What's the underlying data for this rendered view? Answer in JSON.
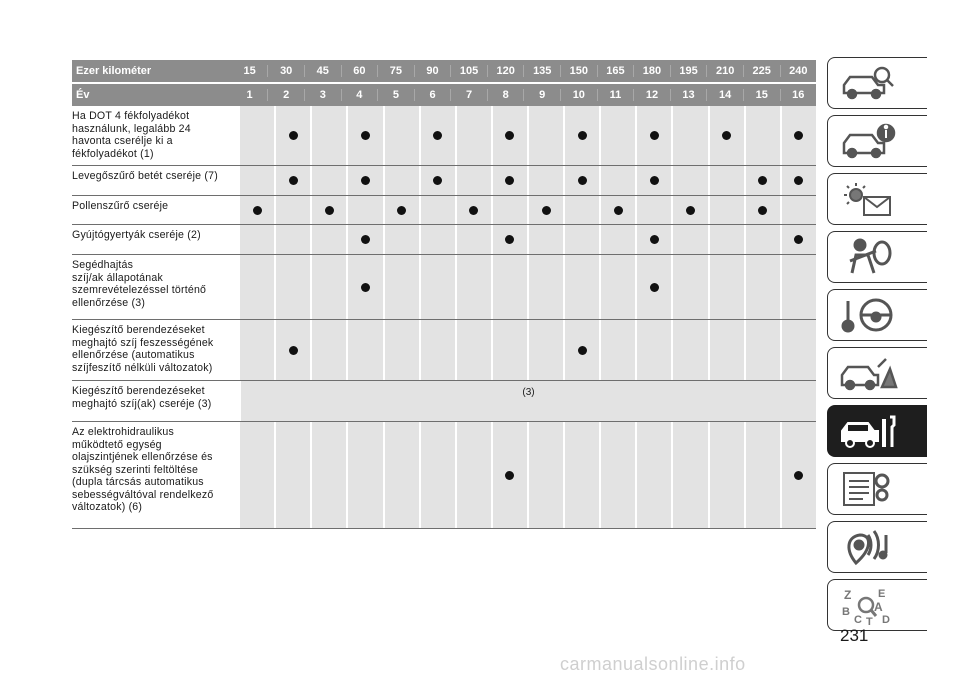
{
  "header": {
    "km_label": "Ezer kilométer",
    "km_values": [
      "15",
      "30",
      "45",
      "60",
      "75",
      "90",
      "105",
      "120",
      "135",
      "150",
      "165",
      "180",
      "195",
      "210",
      "225",
      "240"
    ],
    "year_label": "Év",
    "year_values": [
      "1",
      "2",
      "3",
      "4",
      "5",
      "6",
      "7",
      "8",
      "9",
      "10",
      "11",
      "12",
      "13",
      "14",
      "15",
      "16"
    ]
  },
  "rows": [
    {
      "label": "Ha DOT 4 fékfolyadékot\nhasználunk, legalább 24\nhavonta cserélje ki a\nfékfolyadékot (1)",
      "dots": [
        2,
        4,
        6,
        8,
        10,
        12,
        14,
        16
      ]
    },
    {
      "label": "Levegőszűrő betét cseréje (7)",
      "dots": [
        2,
        4,
        6,
        8,
        10,
        12,
        15,
        16
      ]
    },
    {
      "label": "Pollenszűrő cseréje",
      "dots": [
        1,
        3,
        5,
        7,
        9,
        11,
        13,
        15
      ]
    },
    {
      "label": "Gyújtógyertyák cseréje (2)",
      "dots": [
        4,
        8,
        12,
        16
      ]
    },
    {
      "label": "Segédhajtás\nszíj/ak állapotának\nszemrevételezéssel történő\nellenőrzése (3)",
      "dots": [
        4,
        12
      ]
    },
    {
      "label": "Kiegészítő berendezéseket\nmeghajtó szíj feszességének\nellenőrzése (automatikus\nszíjfeszítő nélküli változatok)",
      "dots": [
        2,
        10
      ]
    },
    {
      "label": "Kiegészítő berendezéseket\nmeghajtó szíj(ak) cseréje (3)",
      "dots": [],
      "span_note": "(3)"
    },
    {
      "label": "Az elektrohidraulikus\nműködtető egység\nolajszintjének ellenőrzése és\nszükség szerinti feltöltése\n(dupla tárcsás automatikus\nsebességváltóval rendelkező\nváltozatok) (6)",
      "dots": [
        8,
        16
      ]
    }
  ],
  "sidebar": {
    "tabs": [
      {
        "icon": "car-search-icon"
      },
      {
        "icon": "car-info-icon"
      },
      {
        "icon": "warning-light-message-icon"
      },
      {
        "icon": "seat-airbag-icon"
      },
      {
        "icon": "key-steering-wheel-icon"
      },
      {
        "icon": "car-breakdown-icon"
      },
      {
        "icon": "car-maintenance-icon",
        "active": true
      },
      {
        "icon": "technical-data-icon"
      },
      {
        "icon": "multimedia-icon"
      },
      {
        "icon": "alphabetical-index-icon"
      }
    ]
  },
  "page_number": "231",
  "watermark": "carmanualsonline.info"
}
